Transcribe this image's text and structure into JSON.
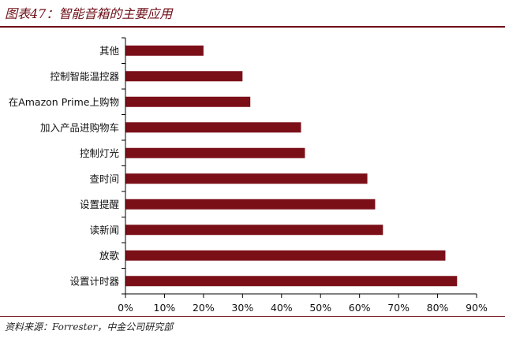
{
  "header": {
    "title": "图表47：智能音箱的主要应用"
  },
  "chart_data": {
    "type": "bar",
    "orientation": "horizontal",
    "categories": [
      "其他",
      "控制智能温控器",
      "在Amazon Prime上购物",
      "加入产品进购物车",
      "控制灯光",
      "查时间",
      "设置提醒",
      "读新闻",
      "放歌",
      "设置计时器"
    ],
    "values": [
      20,
      30,
      32,
      45,
      46,
      62,
      64,
      66,
      82,
      85
    ],
    "xlim": [
      0,
      90
    ],
    "xticks": [
      "0%",
      "10%",
      "20%",
      "30%",
      "40%",
      "50%",
      "60%",
      "70%",
      "80%",
      "90%"
    ],
    "bar_color": "#7b0f18",
    "grid": false,
    "legend": "none"
  },
  "footer": {
    "source": "资料来源：Forrester，中金公司研究部"
  }
}
